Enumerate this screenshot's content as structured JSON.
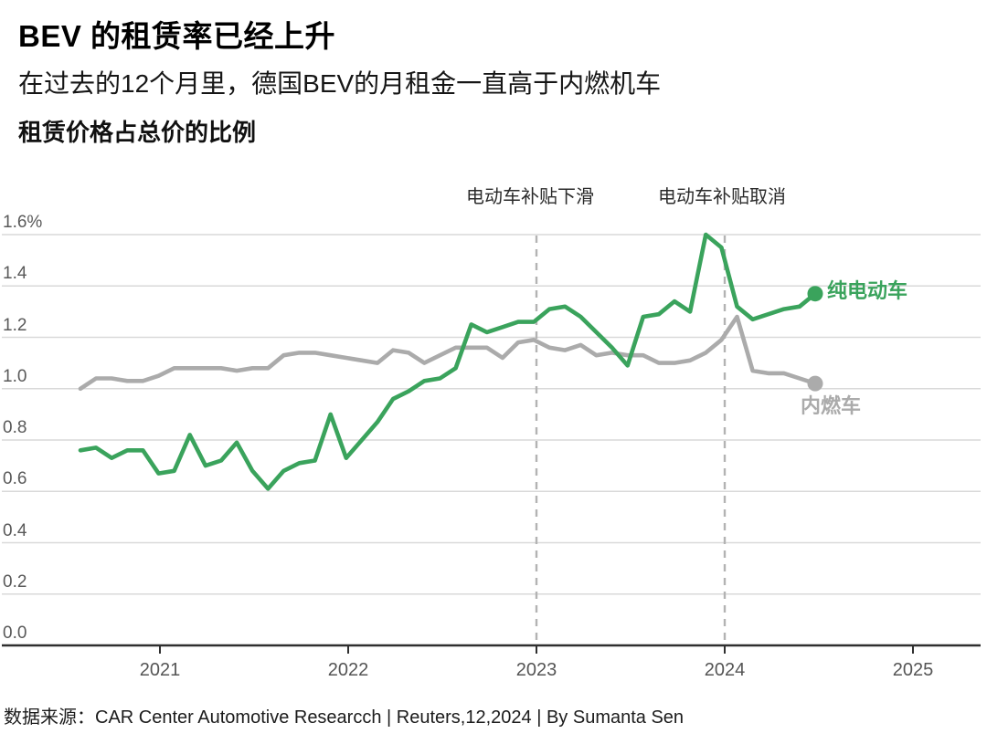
{
  "header": {
    "title": "BEV 的租赁率已经上升",
    "subtitle": "在过去的12个月里，德国BEV的月租金一直高于内燃机车",
    "section_label": "租赁价格占总价的比例"
  },
  "source": "数据来源：CAR Center Automotive Researcch | Reuters,12,2024 | By Sumanta Sen",
  "colors": {
    "bev_green": "#3aa35c",
    "ice_gray": "#ababab",
    "gridline": "#d9d9d9",
    "event_dash": "#b3b3b3",
    "axis_line": "#2f2f2f",
    "tick_text": "#595959"
  },
  "chart_data": {
    "type": "line",
    "title": "租赁价格占总价的比例",
    "unit": "%",
    "x_start": "2020-08",
    "x_interval": "monthly",
    "x_end": "2024-07",
    "x_tick_labels": [
      "2021",
      "2022",
      "2023",
      "2024",
      "2025"
    ],
    "y_ticks": [
      1.6,
      1.4,
      1.2,
      1.0,
      0.8,
      0.6,
      0.4,
      0.2,
      0.0
    ],
    "y_tick_labels": [
      "1.6%",
      "1.4",
      "1.2",
      "1.0",
      "0.8",
      "0.6",
      "0.4",
      "0.2",
      "0.0"
    ],
    "ylim": [
      0,
      1.6
    ],
    "grid": true,
    "legend_position": "end-of-line",
    "series": [
      {
        "name": "内燃车",
        "color": "#ababab",
        "values": [
          1.0,
          1.04,
          1.04,
          1.03,
          1.03,
          1.05,
          1.08,
          1.08,
          1.08,
          1.08,
          1.07,
          1.08,
          1.08,
          1.13,
          1.14,
          1.14,
          1.13,
          1.12,
          1.11,
          1.1,
          1.15,
          1.14,
          1.1,
          1.13,
          1.16,
          1.16,
          1.16,
          1.12,
          1.18,
          1.19,
          1.16,
          1.15,
          1.17,
          1.13,
          1.14,
          1.13,
          1.13,
          1.1,
          1.1,
          1.11,
          1.14,
          1.19,
          1.28,
          1.07,
          1.06,
          1.06,
          1.04,
          1.02
        ]
      },
      {
        "name": "纯电动车",
        "color": "#3aa35c",
        "values": [
          0.76,
          0.77,
          0.73,
          0.76,
          0.76,
          0.67,
          0.68,
          0.82,
          0.7,
          0.72,
          0.79,
          0.68,
          0.61,
          0.68,
          0.71,
          0.72,
          0.9,
          0.73,
          0.8,
          0.87,
          0.96,
          0.99,
          1.03,
          1.04,
          1.08,
          1.25,
          1.22,
          1.24,
          1.26,
          1.26,
          1.31,
          1.32,
          1.28,
          1.22,
          1.16,
          1.09,
          1.28,
          1.29,
          1.34,
          1.3,
          1.6,
          1.55,
          1.32,
          1.27,
          1.29,
          1.31,
          1.32,
          1.37
        ]
      }
    ],
    "events": [
      {
        "label": "电动车补贴下滑",
        "x": "2023-01"
      },
      {
        "label": "电动车补贴取消",
        "x": "2024-01"
      }
    ]
  }
}
